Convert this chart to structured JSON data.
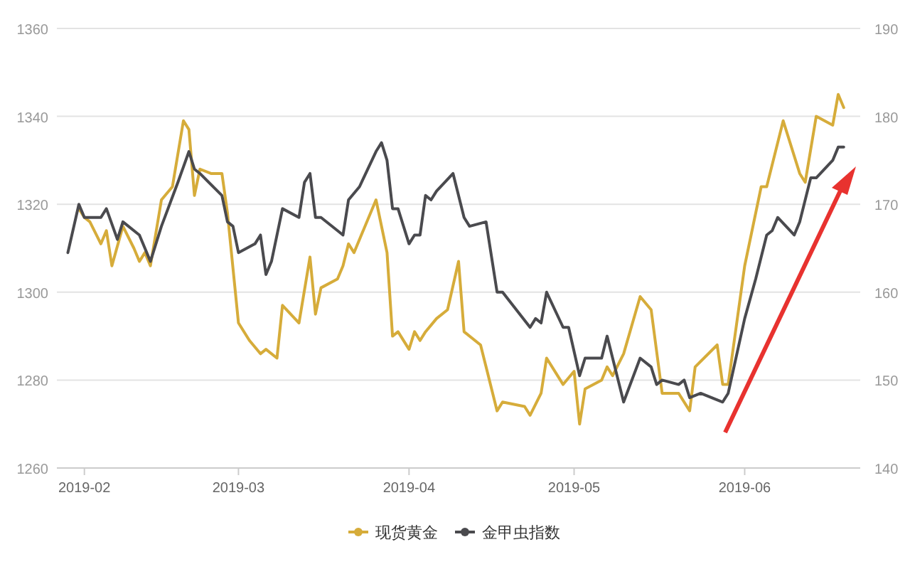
{
  "chart_data": {
    "type": "line",
    "xlim": [
      "2019-01-27",
      "2019-06-22"
    ],
    "xticks": [
      {
        "value": "2019-02-01",
        "label": "2019-02"
      },
      {
        "value": "2019-03-01",
        "label": "2019-03"
      },
      {
        "value": "2019-04-01",
        "label": "2019-04"
      },
      {
        "value": "2019-05-01",
        "label": "2019-05"
      },
      {
        "value": "2019-06-01",
        "label": "2019-06"
      }
    ],
    "ylim": [
      1260,
      1360
    ],
    "yticks": [
      1260,
      1280,
      1300,
      1320,
      1340,
      1360
    ],
    "y2lim": [
      140,
      190
    ],
    "y2ticks": [
      140,
      150,
      160,
      170,
      180,
      190
    ],
    "grid": "y",
    "legend": "bottom",
    "marker": "none",
    "line_style": "solid",
    "series": [
      {
        "name": "现货黄金",
        "color": "#d6ac3a",
        "x": [
          "2019-01-31",
          "2019-02-01",
          "2019-02-02",
          "2019-02-04",
          "2019-02-05",
          "2019-02-06",
          "2019-02-08",
          "2019-02-10",
          "2019-02-11",
          "2019-02-12",
          "2019-02-13",
          "2019-02-15",
          "2019-02-17",
          "2019-02-19",
          "2019-02-20",
          "2019-02-21",
          "2019-02-22",
          "2019-02-24",
          "2019-02-26",
          "2019-02-27",
          "2019-03-01",
          "2019-03-03",
          "2019-03-05",
          "2019-03-06",
          "2019-03-08",
          "2019-03-09",
          "2019-03-12",
          "2019-03-14",
          "2019-03-15",
          "2019-03-16",
          "2019-03-19",
          "2019-03-20",
          "2019-03-21",
          "2019-03-22",
          "2019-03-26",
          "2019-03-28",
          "2019-03-29",
          "2019-03-30",
          "2019-04-01",
          "2019-04-02",
          "2019-04-03",
          "2019-04-04",
          "2019-04-06",
          "2019-04-08",
          "2019-04-10",
          "2019-04-11",
          "2019-04-14",
          "2019-04-15",
          "2019-04-17",
          "2019-04-18",
          "2019-04-22",
          "2019-04-23",
          "2019-04-25",
          "2019-04-26",
          "2019-04-29",
          "2019-05-01",
          "2019-05-02",
          "2019-05-03",
          "2019-05-06",
          "2019-05-07",
          "2019-05-08",
          "2019-05-10",
          "2019-05-13",
          "2019-05-15",
          "2019-05-17",
          "2019-05-20",
          "2019-05-22",
          "2019-05-23",
          "2019-05-27",
          "2019-05-28",
          "2019-05-29",
          "2019-06-01",
          "2019-06-04",
          "2019-06-05",
          "2019-06-08",
          "2019-06-11",
          "2019-06-12",
          "2019-06-14",
          "2019-06-17",
          "2019-06-18",
          "2019-06-19"
        ],
        "values": [
          1319,
          1317,
          1316,
          1311,
          1314,
          1306,
          1315,
          1310,
          1307,
          1309,
          1306,
          1321,
          1324,
          1339,
          1337,
          1322,
          1328,
          1327,
          1327,
          1318,
          1293,
          1289,
          1286,
          1287,
          1285,
          1297,
          1293,
          1308,
          1295,
          1301,
          1303,
          1306,
          1311,
          1309,
          1321,
          1309,
          1290,
          1291,
          1287,
          1291,
          1289,
          1291,
          1294,
          1296,
          1307,
          1291,
          1288,
          1283,
          1273,
          1275,
          1274,
          1272,
          1277,
          1285,
          1279,
          1282,
          1270,
          1278,
          1280,
          1283,
          1281,
          1286,
          1299,
          1296,
          1277,
          1277,
          1273,
          1283,
          1288,
          1279,
          1279,
          1306,
          1324,
          1324,
          1339,
          1327,
          1325,
          1340,
          1338,
          1345,
          1342
        ]
      },
      {
        "name": "金甲虫指数",
        "color": "#4a4a4e",
        "axis": "y2",
        "x": [
          "2019-01-29",
          "2019-01-31",
          "2019-02-01",
          "2019-02-04",
          "2019-02-05",
          "2019-02-07",
          "2019-02-08",
          "2019-02-11",
          "2019-02-13",
          "2019-02-15",
          "2019-02-18",
          "2019-02-20",
          "2019-02-21",
          "2019-02-22",
          "2019-02-26",
          "2019-02-27",
          "2019-02-28",
          "2019-03-01",
          "2019-03-04",
          "2019-03-05",
          "2019-03-06",
          "2019-03-07",
          "2019-03-09",
          "2019-03-12",
          "2019-03-13",
          "2019-03-14",
          "2019-03-15",
          "2019-03-16",
          "2019-03-19",
          "2019-03-20",
          "2019-03-21",
          "2019-03-23",
          "2019-03-26",
          "2019-03-27",
          "2019-03-28",
          "2019-03-29",
          "2019-03-30",
          "2019-04-01",
          "2019-04-02",
          "2019-04-03",
          "2019-04-04",
          "2019-04-05",
          "2019-04-06",
          "2019-04-09",
          "2019-04-11",
          "2019-04-12",
          "2019-04-15",
          "2019-04-16",
          "2019-04-17",
          "2019-04-18",
          "2019-04-23",
          "2019-04-24",
          "2019-04-25",
          "2019-04-26",
          "2019-04-29",
          "2019-04-30",
          "2019-05-02",
          "2019-05-03",
          "2019-05-06",
          "2019-05-07",
          "2019-05-10",
          "2019-05-13",
          "2019-05-15",
          "2019-05-16",
          "2019-05-17",
          "2019-05-20",
          "2019-05-21",
          "2019-05-22",
          "2019-05-24",
          "2019-05-28",
          "2019-05-29",
          "2019-06-01",
          "2019-06-03",
          "2019-06-05",
          "2019-06-06",
          "2019-06-07",
          "2019-06-10",
          "2019-06-11",
          "2019-06-13",
          "2019-06-14",
          "2019-06-17",
          "2019-06-18",
          "2019-06-19"
        ],
        "values": [
          164.5,
          170,
          168.5,
          168.5,
          169.5,
          166,
          168,
          166.5,
          163.5,
          167.5,
          172.5,
          176,
          174,
          173.5,
          171,
          168,
          167.5,
          164.5,
          165.5,
          166.5,
          162,
          163.5,
          169.5,
          168.5,
          172.5,
          173.5,
          168.5,
          168.5,
          167,
          166.5,
          170.5,
          172,
          176,
          177,
          175,
          169.5,
          169.5,
          165.5,
          166.5,
          166.5,
          171,
          170.5,
          171.5,
          173.5,
          168.5,
          167.5,
          168,
          164,
          160,
          160,
          156,
          157,
          156.5,
          160,
          156,
          156,
          150.5,
          152.5,
          152.5,
          155,
          147.5,
          152.5,
          151.5,
          149.5,
          150,
          149.5,
          150,
          148,
          148.5,
          147.5,
          148.5,
          157,
          161.5,
          166.5,
          167,
          168.5,
          166.5,
          168,
          173,
          173,
          175,
          176.5,
          176.5
        ]
      }
    ]
  }
}
